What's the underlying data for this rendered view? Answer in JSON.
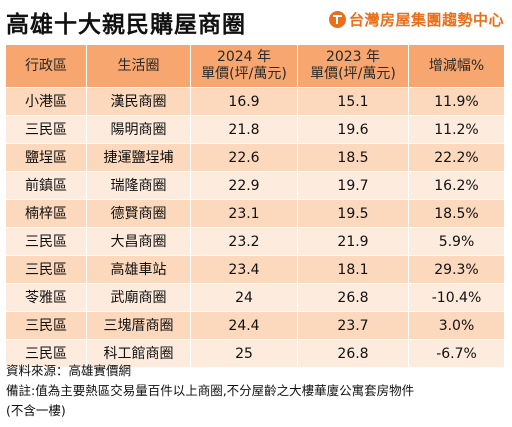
{
  "title": "高雄十大親民購屋商圈",
  "brand": "台灣房屋集團趨勢中心",
  "table": {
    "headers": [
      {
        "line1": "行政區",
        "line2": ""
      },
      {
        "line1": "生活圈",
        "line2": ""
      },
      {
        "line1": "2024 年",
        "line2": "單價(坪/萬元)"
      },
      {
        "line1": "2023 年",
        "line2": "單價(坪/萬元)"
      },
      {
        "line1": "增減幅%",
        "line2": ""
      }
    ],
    "rows": [
      [
        "小港區",
        "漢民商圈",
        "16.9",
        "15.1",
        "11.9%"
      ],
      [
        "三民區",
        "陽明商圈",
        "21.8",
        "19.6",
        "11.2%"
      ],
      [
        "鹽埕區",
        "捷運鹽埕埔",
        "22.6",
        "18.5",
        "22.2%"
      ],
      [
        "前鎮區",
        "瑞隆商圈",
        "22.9",
        "19.7",
        "16.2%"
      ],
      [
        "楠梓區",
        "德賢商圈",
        "23.1",
        "19.5",
        "18.5%"
      ],
      [
        "三民區",
        "大昌商圈",
        "23.2",
        "21.9",
        "5.9%"
      ],
      [
        "三民區",
        "高雄車站",
        "23.4",
        "18.1",
        "29.3%"
      ],
      [
        "苓雅區",
        "武廟商圈",
        "24",
        "26.8",
        "-10.4%"
      ],
      [
        "三民區",
        "三塊厝商圈",
        "24.4",
        "23.7",
        "3.0%"
      ],
      [
        "三民區",
        "科工館商圈",
        "25",
        "26.8",
        "-6.7%"
      ]
    ]
  },
  "footer": {
    "source": "資料來源：高雄實價網",
    "note_line1": "備註:值為主要熱區交易量百件以上商圈,不分屋齡之大樓華廈公寓套房物件",
    "note_line2": "(不含一樓)"
  }
}
